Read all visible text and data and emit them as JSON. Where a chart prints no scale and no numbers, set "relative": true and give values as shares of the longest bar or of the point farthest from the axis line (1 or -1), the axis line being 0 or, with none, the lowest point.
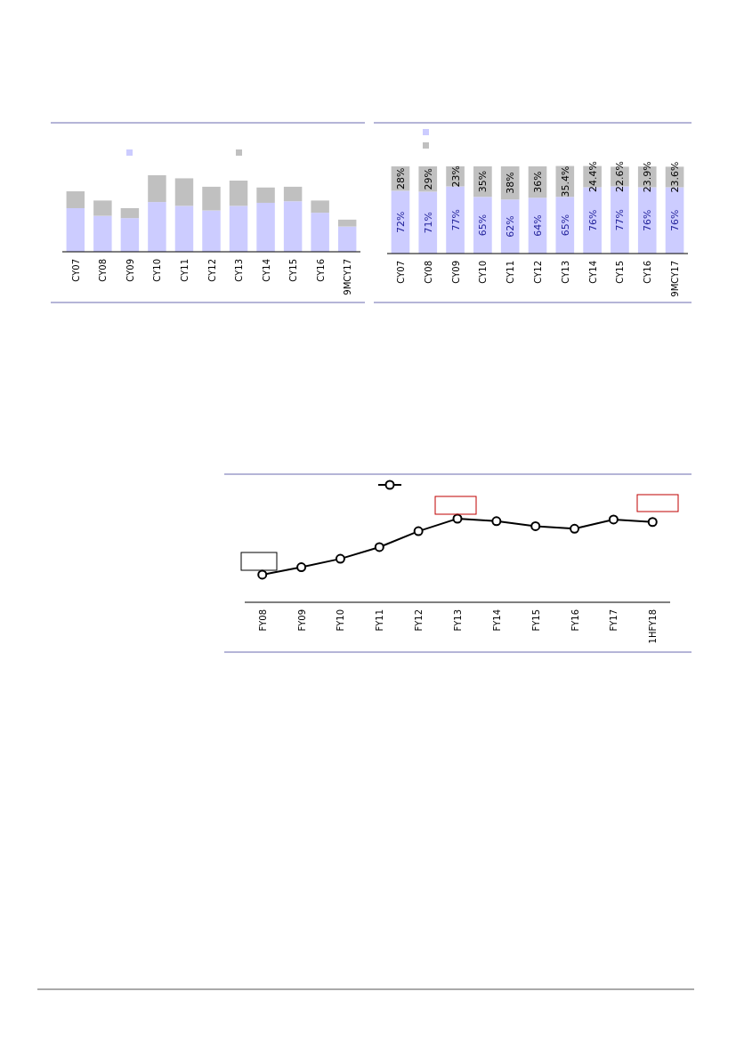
{
  "chart_data": [
    {
      "type": "bar",
      "stacked": true,
      "relative": true,
      "categories": [
        "CY07",
        "CY08",
        "CY09",
        "CY10",
        "CY11",
        "CY12",
        "CY13",
        "CY14",
        "CY15",
        "CY16",
        "9MCY17"
      ],
      "series": [
        {
          "color": "#ccccff",
          "values": [
            0.57,
            0.47,
            0.44,
            0.65,
            0.6,
            0.54,
            0.6,
            0.64,
            0.66,
            0.51,
            0.33
          ]
        },
        {
          "color": "#c0c0c0",
          "values": [
            0.22,
            0.2,
            0.13,
            0.35,
            0.36,
            0.31,
            0.33,
            0.2,
            0.19,
            0.16,
            0.09
          ]
        }
      ]
    },
    {
      "type": "bar",
      "stacked": true,
      "ylim": [
        0,
        100
      ],
      "categories": [
        "CY07",
        "CY08",
        "CY09",
        "CY10",
        "CY11",
        "CY12",
        "CY13",
        "CY14",
        "CY15",
        "CY16",
        "9MCY17"
      ],
      "series": [
        {
          "color": "#ccccff",
          "values": [
            72,
            71,
            77,
            65,
            62,
            64,
            65,
            76,
            77,
            76,
            76
          ],
          "value_labels": [
            "72%",
            "71%",
            "77%",
            "65%",
            "62%",
            "64%",
            "65%",
            "76%",
            "77%",
            "76%",
            "76%"
          ]
        },
        {
          "color": "#c0c0c0",
          "values": [
            28,
            29,
            23,
            35,
            38,
            36,
            35.4,
            24.4,
            22.6,
            23.9,
            23.6
          ],
          "value_labels": [
            "28%",
            "29%",
            "23%",
            "35%",
            "38%",
            "36%",
            "35.4%",
            "24.4%",
            "22.6%",
            "23.9%",
            "23.6%"
          ]
        }
      ]
    },
    {
      "type": "line",
      "relative": true,
      "marker": "circle",
      "line_style": "solid",
      "categories": [
        "FY08",
        "FY09",
        "FY10",
        "FY11",
        "FY12",
        "FY13",
        "FY14",
        "FY15",
        "FY16",
        "FY17",
        "1HFY18"
      ],
      "series": [
        {
          "color": "#000000",
          "values": [
            0.33,
            0.42,
            0.52,
            0.66,
            0.85,
            1,
            0.97,
            0.91,
            0.88,
            0.99,
            0.96
          ]
        }
      ]
    }
  ]
}
